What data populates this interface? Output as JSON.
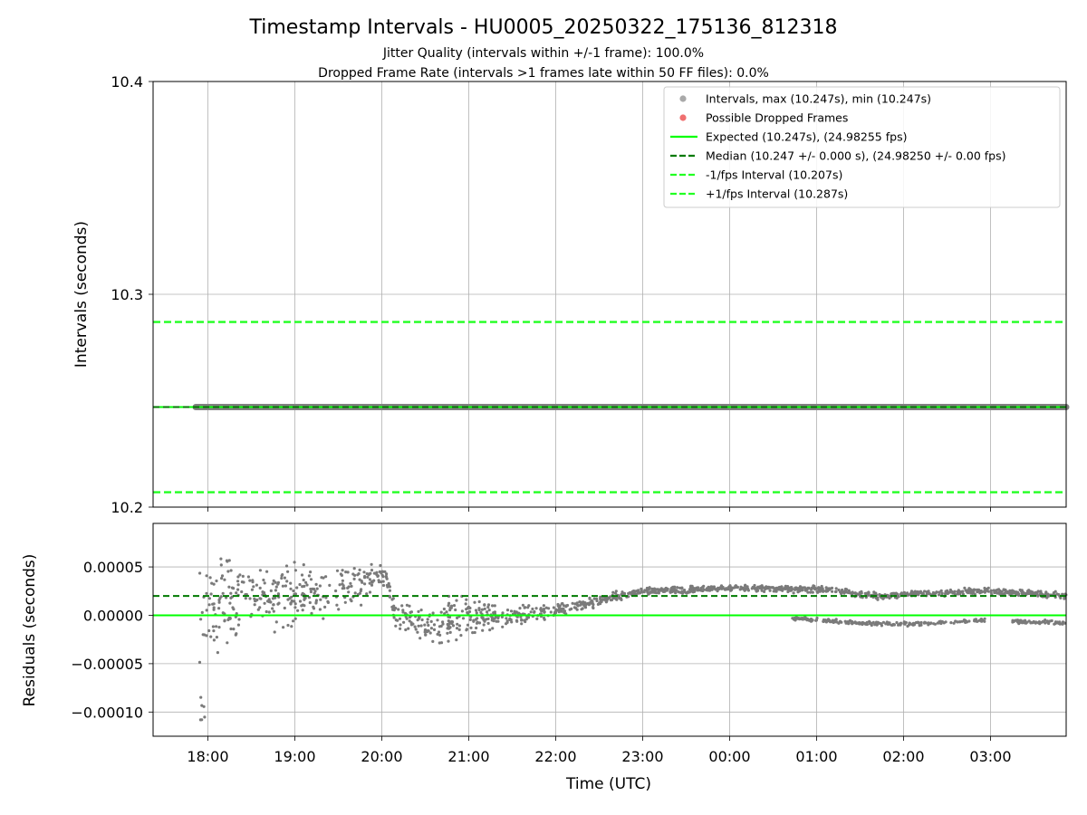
{
  "chart_data": {
    "title": "Timestamp Intervals - HU0005_20250322_175136_812318",
    "subtitles": [
      "Jitter Quality (intervals within +/-1 frame): 100.0%",
      "Dropped Frame Rate (intervals >1 frames late within 50 FF files): 0.0%"
    ],
    "xlabel": "Time (UTC)",
    "x_ticks": [
      "18:00",
      "19:00",
      "20:00",
      "21:00",
      "22:00",
      "23:00",
      "00:00",
      "01:00",
      "02:00",
      "03:00"
    ],
    "x_range_hours": [
      17.37,
      27.87
    ],
    "top_panel": {
      "type": "scatter",
      "ylabel": "Intervals (seconds)",
      "ylim": [
        10.2,
        10.4
      ],
      "y_ticks": [
        "10.2",
        "10.3",
        "10.4"
      ],
      "y_tick_values": [
        10.2,
        10.3,
        10.4
      ],
      "grid": true,
      "legend_position": "top-right",
      "legend": [
        {
          "label": "Intervals, max (10.247s), min (10.247s)",
          "kind": "dot",
          "color": "#a9a9a9"
        },
        {
          "label": "Possible Dropped Frames",
          "kind": "dot",
          "color": "#f07070"
        },
        {
          "label": "Expected (10.247s), (24.98255 fps)",
          "kind": "solid",
          "color": "#00ff00"
        },
        {
          "label": "Median (10.247 +/- 0.000 s), (24.98250 +/- 0.00 fps)",
          "kind": "dashed",
          "color": "#007a00"
        },
        {
          "label": "-1/fps Interval (10.207s)",
          "kind": "dashed",
          "color": "#22ff22"
        },
        {
          "label": "+1/fps Interval (10.287s)",
          "kind": "dashed",
          "color": "#22ff22"
        }
      ],
      "expected": 10.247,
      "median": 10.247,
      "minus_interval": 10.207,
      "plus_interval": 10.287,
      "interval_series": {
        "value": 10.247,
        "x_start": 17.86,
        "x_end": 27.87
      }
    },
    "bottom_panel": {
      "type": "scatter",
      "ylabel": "Residuals (seconds)",
      "ylim": [
        -0.000125,
        9.5e-05
      ],
      "y_ticks": [
        "−0.00010",
        "−0.00005",
        "0.00000",
        "0.00005"
      ],
      "y_tick_values": [
        -0.0001,
        -5e-05,
        0.0,
        5e-05
      ],
      "grid": true,
      "expected_residual": 0.0,
      "median_residual": 2e-05,
      "residual_profile": [
        [
          17.9,
          5e-06,
          2.5e-05
        ],
        [
          18.2,
          1e-05,
          3e-05
        ],
        [
          18.6,
          2e-05,
          1.8e-05
        ],
        [
          19.0,
          2e-05,
          1.8e-05
        ],
        [
          19.4,
          2.5e-05,
          1.8e-05
        ],
        [
          19.8,
          3.5e-05,
          1e-05
        ],
        [
          20.05,
          4.2e-05,
          6e-06
        ],
        [
          20.15,
          0.0,
          6e-06
        ],
        [
          20.6,
          -1.2e-05,
          1.2e-05
        ],
        [
          21.0,
          0.0,
          1.2e-05
        ],
        [
          21.5,
          0.0,
          6e-06
        ],
        [
          22.0,
          5e-06,
          4e-06
        ],
        [
          22.6,
          1.7e-05,
          3e-06
        ],
        [
          23.0,
          2.5e-05,
          2e-06
        ],
        [
          24.0,
          2.8e-05,
          2e-06
        ],
        [
          25.0,
          2.7e-05,
          2e-06
        ],
        [
          25.7,
          2e-05,
          2e-06
        ],
        [
          26.3,
          2.3e-05,
          2e-06
        ],
        [
          27.0,
          2.5e-05,
          2e-06
        ],
        [
          27.87,
          2e-05,
          2e-06
        ]
      ],
      "residual_lower_branch": [
        [
          24.7,
          -3e-06
        ],
        [
          25.5,
          -8e-06
        ],
        [
          26.1,
          -9e-06
        ],
        [
          26.9,
          -5e-06
        ],
        [
          27.87,
          -8e-06
        ]
      ]
    }
  }
}
